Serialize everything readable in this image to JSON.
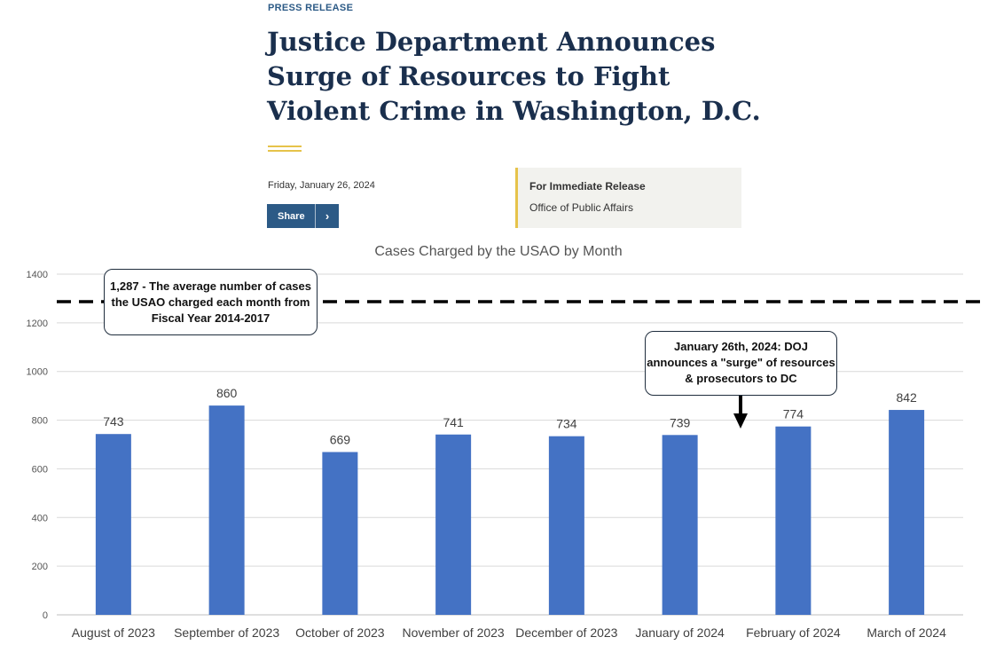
{
  "press": {
    "kicker": "PRESS RELEASE",
    "headline": "Justice Department Announces Surge of Resources to Fight Violent Crime in Washington, D.C.",
    "date": "Friday, January 26, 2024",
    "share_label": "Share",
    "release_type": "For Immediate Release",
    "office": "Office of Public Affairs"
  },
  "colors": {
    "bar": "#4472c4",
    "accent_gold": "#e6c34a",
    "navy": "#2c5a86"
  },
  "chart_data": {
    "type": "bar",
    "title": "Cases Charged by the USAO by Month",
    "categories": [
      "August of 2023",
      "September of 2023",
      "October of 2023",
      "November of 2023",
      "December of 2023",
      "January of 2024",
      "February of 2024",
      "March of 2024"
    ],
    "values": [
      743,
      860,
      669,
      741,
      734,
      739,
      774,
      842
    ],
    "ylim": [
      0,
      1400
    ],
    "yticks": [
      0,
      200,
      400,
      600,
      800,
      1000,
      1200,
      1400
    ],
    "grid": true,
    "reference_line": {
      "value": 1287,
      "style": "dashed"
    },
    "annotations": {
      "average": "1,287 - The average number of cases the USAO charged each month from Fiscal Year 2014-2017",
      "surge": "January 26th, 2024: DOJ announces a \"surge\" of resources & prosecutors to DC"
    }
  }
}
